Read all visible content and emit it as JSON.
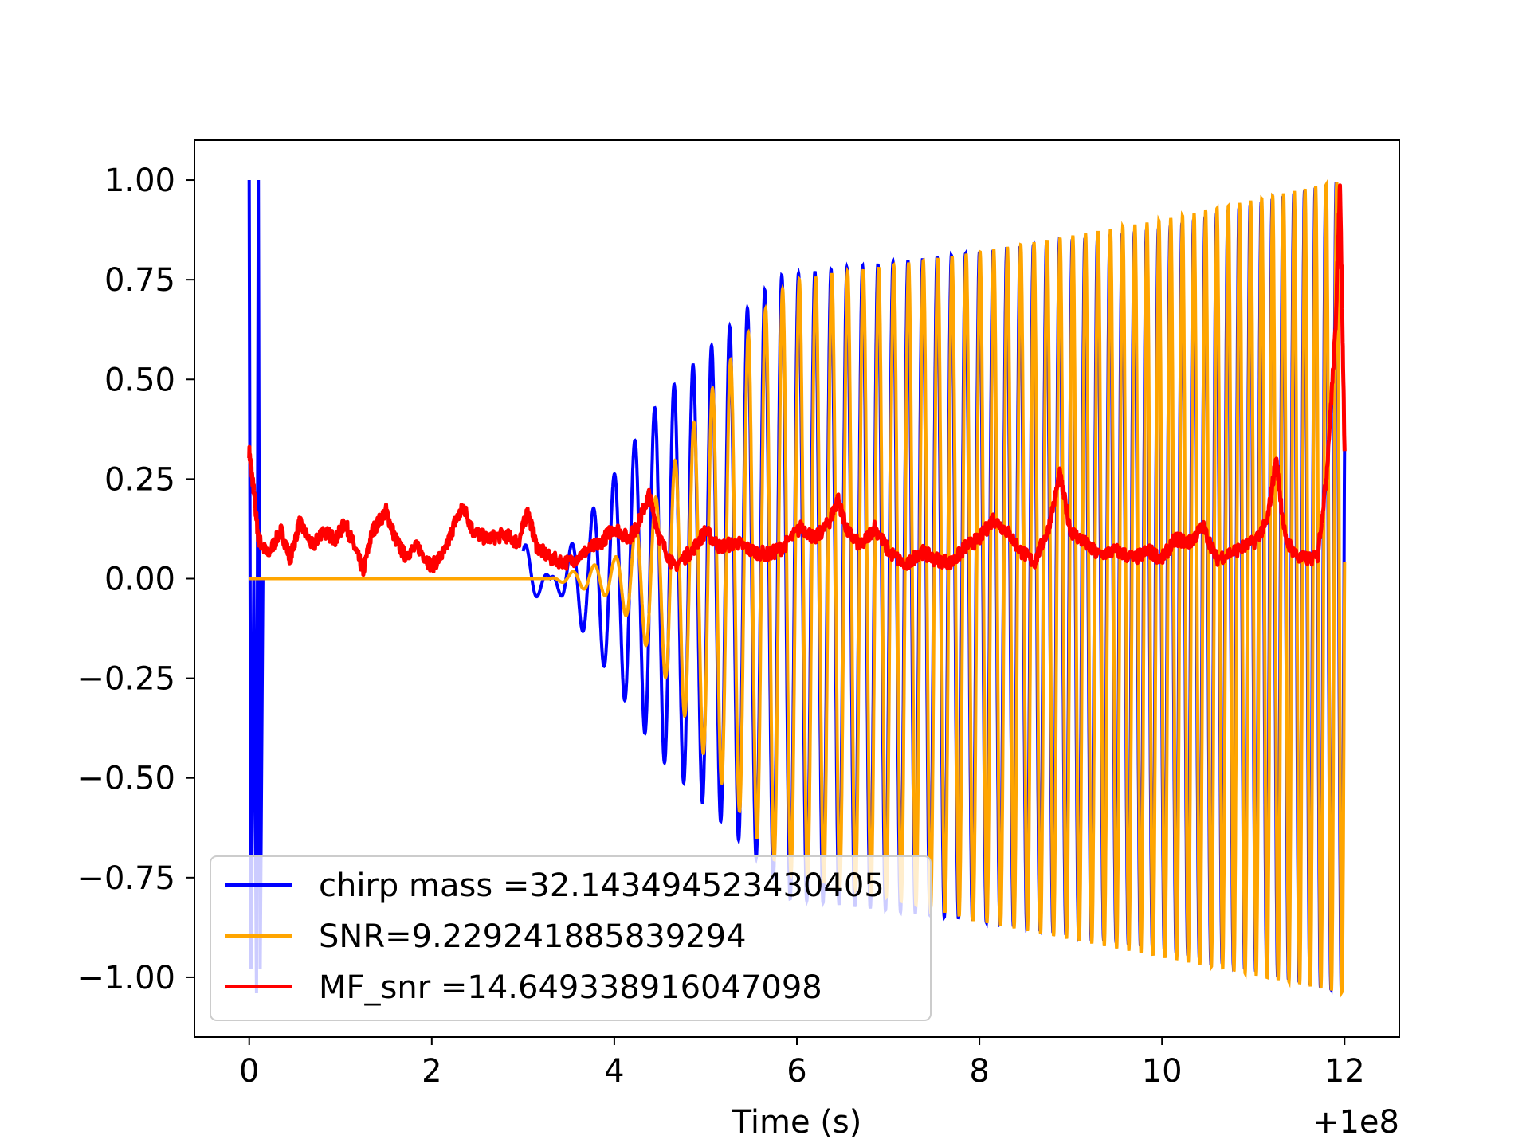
{
  "chart_data": {
    "type": "line",
    "title": "",
    "xlabel": "Time (s)",
    "ylabel": "",
    "x_offset_label": "+1e8",
    "xlim": [
      -0.6,
      12.6
    ],
    "ylim": [
      -1.15,
      1.1
    ],
    "xticks": [
      0,
      2,
      4,
      6,
      8,
      10,
      12
    ],
    "xtick_labels": [
      "0",
      "2",
      "4",
      "6",
      "8",
      "10",
      "12"
    ],
    "yticks": [
      1.0,
      0.75,
      0.5,
      0.25,
      0.0,
      -0.25,
      -0.5,
      -0.75,
      -1.0
    ],
    "ytick_labels": [
      "1.00",
      "0.75",
      "0.50",
      "0.25",
      "0.00",
      "−0.25",
      "−0.50",
      "−0.75",
      "−1.00"
    ],
    "grid": false,
    "legend_position": "lower-left",
    "series": [
      {
        "name": "chirp mass =32.143494523430405",
        "color": "#0000ff",
        "kind": "chirp-oscillation",
        "x_start": 0.0,
        "x_end": 12.0,
        "envelope": [
          [
            0.0,
            1.0
          ],
          [
            0.1,
            1.0
          ],
          [
            3.3,
            0.0
          ],
          [
            4.5,
            0.45
          ],
          [
            5.8,
            0.76
          ],
          [
            8.0,
            0.82
          ],
          [
            10.0,
            0.88
          ],
          [
            12.0,
            1.0
          ]
        ],
        "negative_envelope": [
          [
            5.8,
            -0.8
          ],
          [
            8.0,
            -0.86
          ],
          [
            10.0,
            -0.93
          ],
          [
            12.0,
            -1.04
          ]
        ],
        "note_values": {
          "initial_spike_max": 1.0,
          "initial_spike_min": -1.04
        }
      },
      {
        "name": "SNR=9.229241885839294",
        "color": "#ffa500",
        "kind": "chirp-oscillation",
        "x_start": 0.0,
        "x_end": 12.0,
        "envelope": [
          [
            0.0,
            0.0
          ],
          [
            3.3,
            0.0
          ],
          [
            4.0,
            0.05
          ],
          [
            4.5,
            0.22
          ],
          [
            5.0,
            0.45
          ],
          [
            5.5,
            0.63
          ],
          [
            5.8,
            0.72
          ],
          [
            6.0,
            0.75
          ],
          [
            8.0,
            0.82
          ],
          [
            10.0,
            0.9
          ],
          [
            12.0,
            1.0
          ]
        ],
        "negative_envelope": [
          [
            5.8,
            -0.73
          ],
          [
            8.0,
            -0.86
          ],
          [
            10.0,
            -0.95
          ],
          [
            12.0,
            -1.04
          ]
        ]
      },
      {
        "name": "MF_snr =14.649338916047098",
        "color": "#ff0000",
        "kind": "noisy-line",
        "points": [
          [
            0.0,
            0.32
          ],
          [
            0.05,
            0.22
          ],
          [
            0.1,
            0.1
          ],
          [
            0.2,
            0.06
          ],
          [
            0.35,
            0.12
          ],
          [
            0.45,
            0.05
          ],
          [
            0.55,
            0.14
          ],
          [
            0.7,
            0.08
          ],
          [
            0.8,
            0.12
          ],
          [
            0.95,
            0.1
          ],
          [
            1.05,
            0.14
          ],
          [
            1.15,
            0.08
          ],
          [
            1.25,
            0.02
          ],
          [
            1.35,
            0.12
          ],
          [
            1.5,
            0.17
          ],
          [
            1.6,
            0.1
          ],
          [
            1.7,
            0.06
          ],
          [
            1.85,
            0.08
          ],
          [
            2.0,
            0.03
          ],
          [
            2.15,
            0.07
          ],
          [
            2.25,
            0.14
          ],
          [
            2.35,
            0.18
          ],
          [
            2.45,
            0.12
          ],
          [
            2.6,
            0.1
          ],
          [
            2.8,
            0.11
          ],
          [
            2.95,
            0.09
          ],
          [
            3.05,
            0.17
          ],
          [
            3.15,
            0.08
          ],
          [
            3.3,
            0.05
          ],
          [
            3.5,
            0.04
          ],
          [
            3.7,
            0.07
          ],
          [
            3.85,
            0.09
          ],
          [
            4.0,
            0.13
          ],
          [
            4.15,
            0.1
          ],
          [
            4.25,
            0.13
          ],
          [
            4.38,
            0.21
          ],
          [
            4.5,
            0.1
          ],
          [
            4.65,
            0.03
          ],
          [
            4.85,
            0.07
          ],
          [
            5.0,
            0.12
          ],
          [
            5.15,
            0.08
          ],
          [
            5.35,
            0.09
          ],
          [
            5.5,
            0.07
          ],
          [
            5.7,
            0.06
          ],
          [
            5.85,
            0.08
          ],
          [
            6.05,
            0.13
          ],
          [
            6.2,
            0.1
          ],
          [
            6.35,
            0.14
          ],
          [
            6.45,
            0.2
          ],
          [
            6.55,
            0.12
          ],
          [
            6.7,
            0.08
          ],
          [
            6.85,
            0.13
          ],
          [
            7.0,
            0.07
          ],
          [
            7.2,
            0.03
          ],
          [
            7.35,
            0.07
          ],
          [
            7.5,
            0.05
          ],
          [
            7.7,
            0.04
          ],
          [
            7.85,
            0.08
          ],
          [
            8.0,
            0.1
          ],
          [
            8.15,
            0.15
          ],
          [
            8.3,
            0.12
          ],
          [
            8.45,
            0.07
          ],
          [
            8.6,
            0.04
          ],
          [
            8.75,
            0.12
          ],
          [
            8.88,
            0.26
          ],
          [
            9.0,
            0.12
          ],
          [
            9.15,
            0.09
          ],
          [
            9.3,
            0.06
          ],
          [
            9.5,
            0.07
          ],
          [
            9.7,
            0.05
          ],
          [
            9.85,
            0.07
          ],
          [
            10.0,
            0.05
          ],
          [
            10.15,
            0.1
          ],
          [
            10.3,
            0.09
          ],
          [
            10.45,
            0.13
          ],
          [
            10.6,
            0.05
          ],
          [
            10.8,
            0.07
          ],
          [
            11.0,
            0.09
          ],
          [
            11.15,
            0.14
          ],
          [
            11.25,
            0.3
          ],
          [
            11.35,
            0.1
          ],
          [
            11.5,
            0.05
          ],
          [
            11.7,
            0.05
          ],
          [
            11.8,
            0.25
          ],
          [
            11.9,
            0.62
          ],
          [
            11.95,
            1.0
          ],
          [
            12.0,
            0.32
          ]
        ]
      }
    ]
  }
}
